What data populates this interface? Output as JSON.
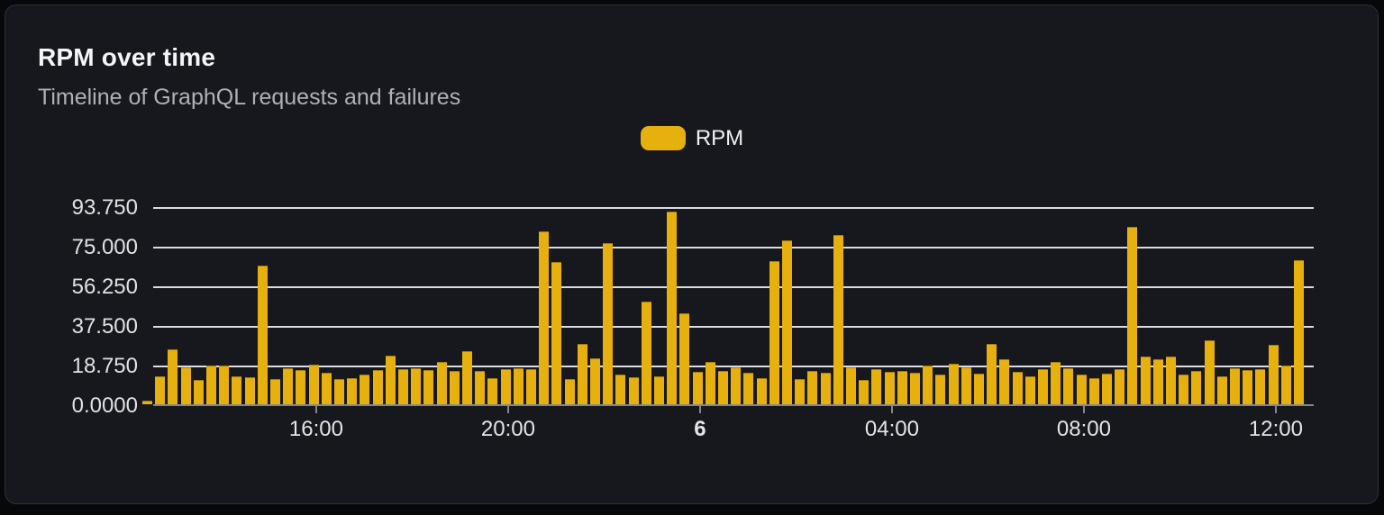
{
  "panel": {
    "title": "RPM over time",
    "subtitle": "Timeline of GraphQL requests and failures"
  },
  "legend": {
    "label": "RPM"
  },
  "colors": {
    "page_background": "#07080a",
    "card_background": "#16181d",
    "card_border": "#2c2f36",
    "bar": "#e6b00e",
    "gridline": "#d9dce4",
    "axis": "#85878d",
    "title_text": "#f4f5f6",
    "subtitle_text": "#aeb1b7",
    "tick_text": "#e0e1e4"
  },
  "chart_data": {
    "type": "bar",
    "title": "RPM over time",
    "subtitle": "Timeline of GraphQL requests and failures",
    "xlabel": "",
    "ylabel": "",
    "ylim": [
      0,
      100
    ],
    "grid": true,
    "legend_position": "top-center",
    "series_name": "RPM",
    "y_ticks": [
      {
        "label": "0.0000",
        "value": 0
      },
      {
        "label": "18.750",
        "value": 18.75
      },
      {
        "label": "37.500",
        "value": 37.5
      },
      {
        "label": "56.250",
        "value": 56.25
      },
      {
        "label": "75.000",
        "value": 75
      },
      {
        "label": "93.750",
        "value": 93.75
      }
    ],
    "x_ticks": [
      {
        "label": "16:00",
        "index": 13.2,
        "bold": false
      },
      {
        "label": "20:00",
        "index": 28.2,
        "bold": false
      },
      {
        "label": "6",
        "index": 43.2,
        "bold": true
      },
      {
        "label": "04:00",
        "index": 58.2,
        "bold": false
      },
      {
        "label": "08:00",
        "index": 73.2,
        "bold": false
      },
      {
        "label": "12:00",
        "index": 88.2,
        "bold": false
      }
    ],
    "values": [
      1.5,
      13,
      26,
      17.3,
      11.4,
      18.5,
      18.5,
      13.2,
      12.8,
      65.6,
      11.8,
      17,
      16,
      18.9,
      15,
      11.8,
      12.4,
      14,
      16.4,
      23.2,
      16.7,
      17,
      16,
      20.2,
      15.9,
      25.3,
      15.9,
      12.5,
      16.8,
      17,
      16.8,
      82,
      67.5,
      11.9,
      28.4,
      21.7,
      76.4,
      13.9,
      12.8,
      48.4,
      13.1,
      91.3,
      42.9,
      15.2,
      20,
      15.6,
      17.3,
      14.9,
      12.4,
      67.6,
      77.6,
      11.8,
      15.6,
      14.9,
      80.1,
      17.6,
      11.7,
      16.6,
      15.2,
      15.9,
      14.8,
      18.3,
      13.9,
      19,
      17.5,
      14.5,
      28.4,
      21.2,
      15.5,
      13.2,
      16.6,
      20.2,
      17,
      14.2,
      12.2,
      14.5,
      16.6,
      83.8,
      22.7,
      21.2,
      22.7,
      14.2,
      15.9,
      30.1,
      13.1,
      16.9,
      16.2,
      16.6,
      28,
      18.2,
      68.1
    ]
  }
}
